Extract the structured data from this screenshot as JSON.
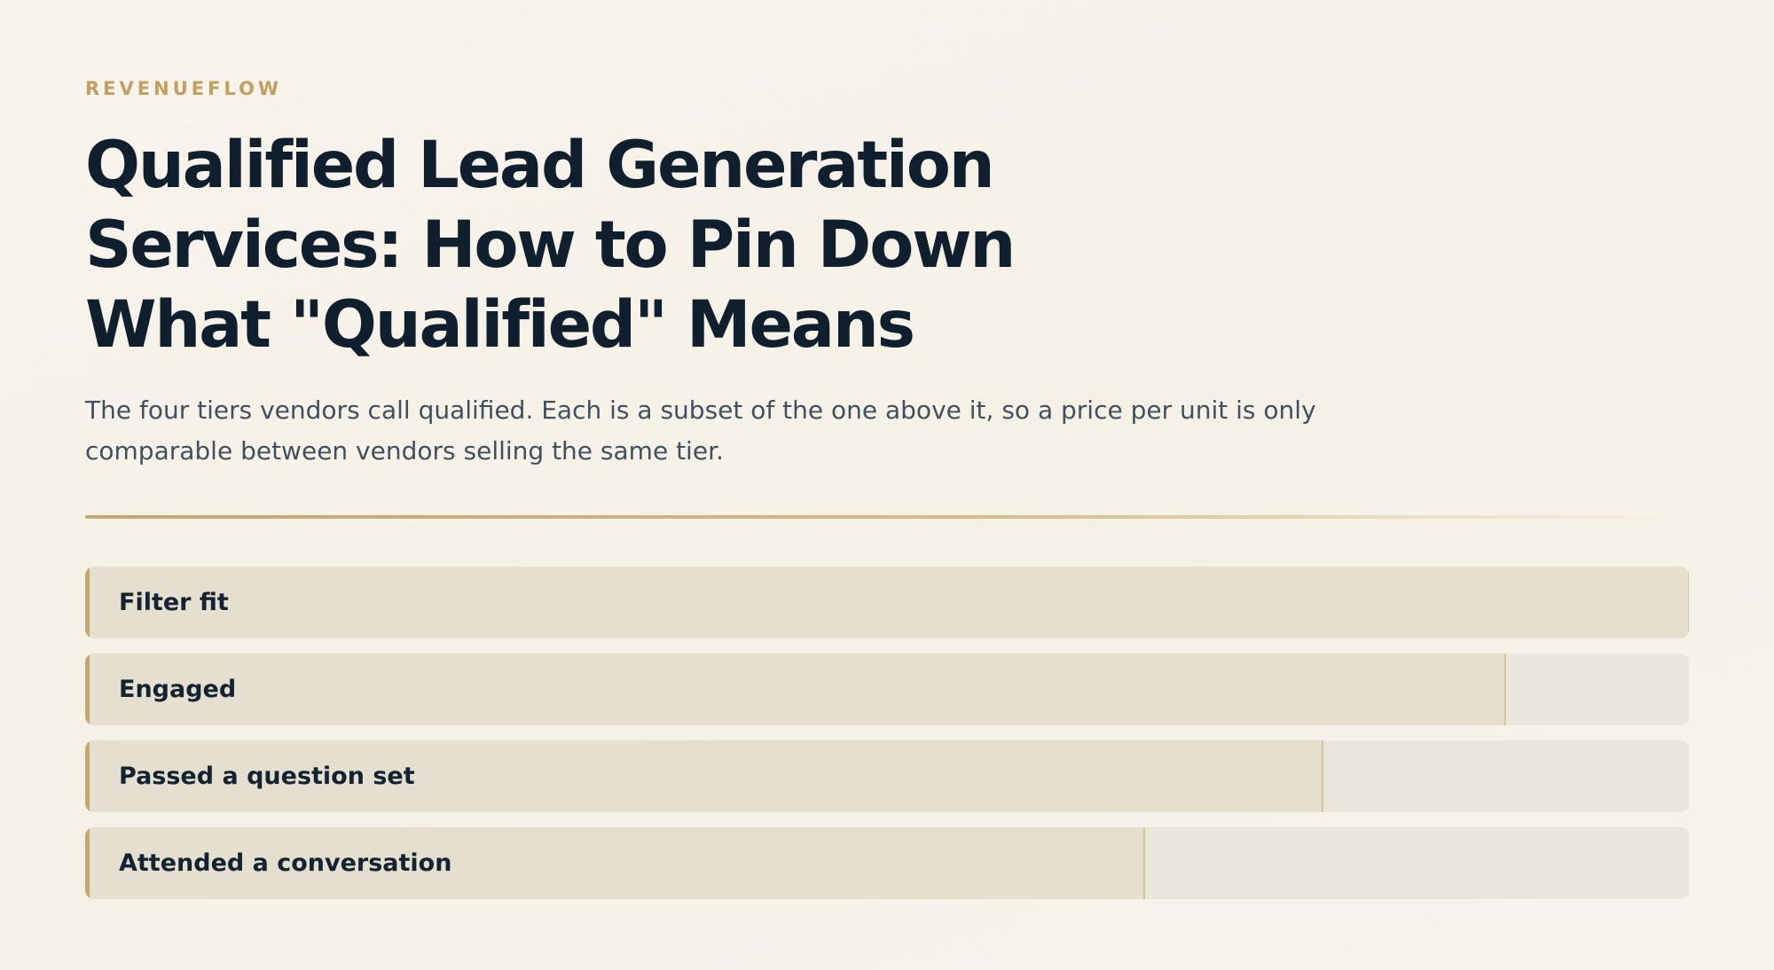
{
  "brand": "REVENUEFLOW",
  "title": "Qualified Lead Generation Services: How to Pin Down What \"Qualified\" Means",
  "subtitle": "The four tiers vendors call qualified. Each is a subset of the one above it, so a price per unit is only comparable between vendors selling the same tier.",
  "colors": {
    "accent": "#c6a76c",
    "title": "#0f1f2e",
    "bar_fill": "#e4dfcf",
    "bar_track": "#e9e6dc"
  },
  "chart_data": {
    "type": "bar",
    "orientation": "horizontal",
    "categories": [
      "Filter fit",
      "Engaged",
      "Passed a question set",
      "Attended a conversation"
    ],
    "values": [
      100,
      88.6,
      77.2,
      66.1
    ],
    "xlim": [
      0,
      100
    ],
    "grid": false,
    "title": "",
    "xlabel": "",
    "ylabel": ""
  }
}
